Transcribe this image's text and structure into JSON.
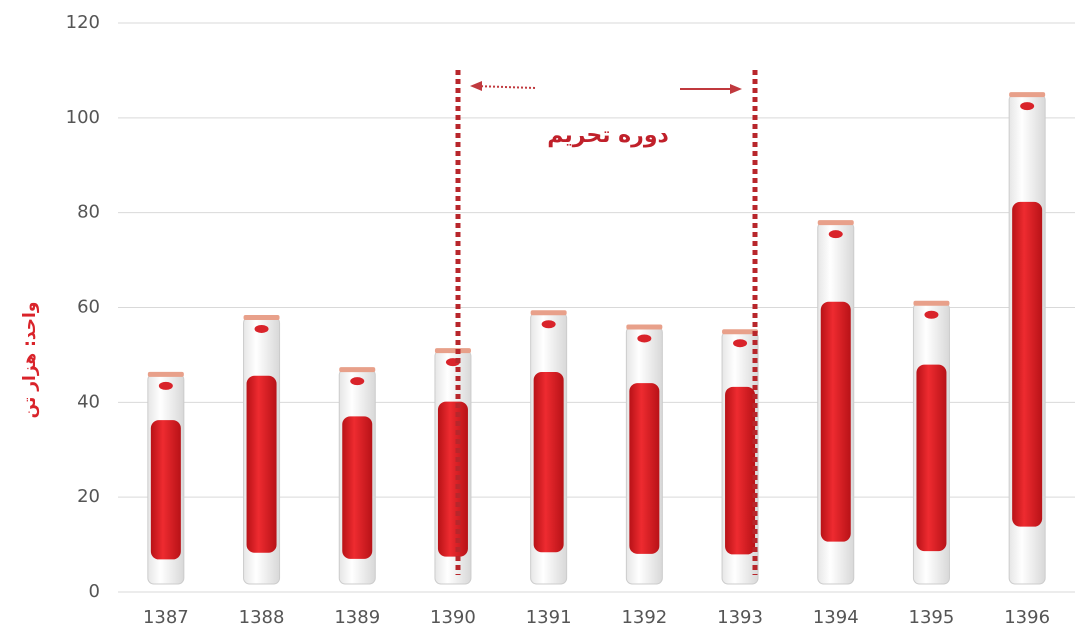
{
  "chart_data": {
    "type": "bar",
    "y_label": "واحد: هزار تن",
    "annotation": "دوره تحریم",
    "categories": [
      "1387",
      "1388",
      "1389",
      "1390",
      "1391",
      "1392",
      "1393",
      "1394",
      "1395",
      "1396"
    ],
    "values": [
      46,
      58,
      47,
      51,
      59,
      56,
      55,
      78,
      61,
      105
    ],
    "color": "#d9232a",
    "ylim": [
      0,
      120
    ],
    "yticks": [
      0,
      20,
      40,
      60,
      80,
      100,
      120
    ],
    "grid": true
  }
}
